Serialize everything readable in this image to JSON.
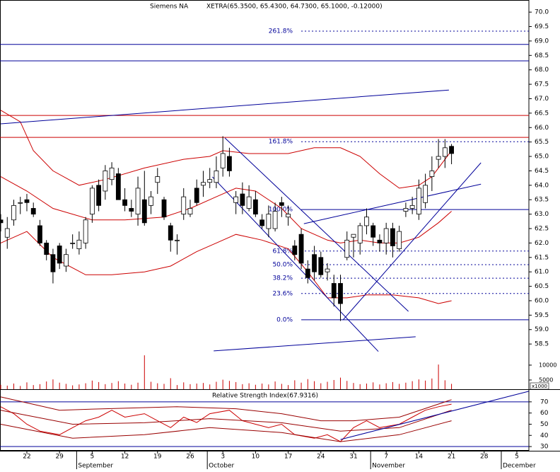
{
  "chart_data": {
    "type": "candlestick",
    "title": "Siemens NA",
    "subtitle": "XETRA(65.3500, 65.4300, 64.7300, 65.1000, -0.12000)",
    "categories": [
      null,
      null,
      null,
      null,
      "22",
      null,
      null,
      null,
      null,
      "29",
      null,
      null,
      null,
      null,
      "5",
      null,
      null,
      null,
      null,
      "12",
      null,
      null,
      null,
      null,
      "19",
      null,
      null,
      null,
      null,
      "26",
      null,
      null,
      null,
      null,
      "3",
      null,
      null,
      null,
      null,
      "10",
      null,
      null,
      null,
      null,
      "17",
      null,
      null,
      null,
      null,
      "24",
      null,
      null,
      null,
      null,
      "31",
      null,
      null,
      null,
      null,
      "7",
      null,
      null,
      null,
      null,
      "14",
      null,
      null,
      null,
      null,
      "21",
      null,
      null,
      null,
      null,
      "28",
      null,
      null,
      null,
      null,
      "5",
      null
    ],
    "months": [
      "September",
      "October",
      "November",
      "December"
    ],
    "open": [
      62.8,
      62.2,
      62.8,
      63.4,
      63.5,
      63.2,
      62.6,
      62.0,
      61.6,
      61.9,
      61.2,
      62.0,
      61.8,
      62.0,
      63.0,
      64.0,
      63.8,
      64.2,
      64.4,
      63.5,
      63.2,
      63.0,
      63.5,
      63.3,
      64.1,
      63.5,
      62.6,
      62.1,
      63.0,
      63.0,
      63.9,
      64.0,
      64.1,
      64.1,
      64.6,
      65.0,
      63.4,
      63.7,
      63.2,
      63.5,
      62.8,
      62.5,
      62.5,
      63.4,
      62.9,
      61.9,
      62.3,
      61.1,
      61.6,
      61.5,
      61.0,
      60.6,
      60.6,
      61.5,
      62.2,
      62.0,
      62.6,
      62.6,
      62.1,
      62.0,
      62.5,
      61.8,
      63.1,
      63.2,
      63.0,
      63.4,
      64.3,
      64.9,
      65.0,
      65.35,
      null,
      null,
      null,
      null,
      null,
      null,
      null,
      null,
      null,
      null,
      null
    ],
    "high": [
      63.0,
      62.9,
      63.5,
      63.6,
      63.7,
      63.4,
      62.8,
      62.1,
      61.8,
      62.0,
      61.8,
      62.3,
      62.4,
      62.9,
      64.0,
      64.2,
      64.7,
      64.8,
      64.6,
      63.9,
      63.5,
      64.3,
      64.5,
      63.8,
      64.6,
      63.6,
      62.7,
      62.3,
      63.9,
      63.5,
      64.2,
      64.5,
      64.6,
      65.0,
      65.7,
      65.3,
      63.8,
      64.1,
      64.0,
      63.8,
      63.0,
      63.3,
      63.4,
      63.6,
      63.3,
      62.1,
      62.5,
      61.4,
      61.9,
      61.7,
      61.3,
      60.9,
      60.9,
      62.4,
      62.3,
      62.7,
      63.2,
      62.7,
      62.3,
      62.7,
      62.7,
      62.6,
      63.4,
      63.6,
      64.2,
      64.4,
      65.0,
      65.6,
      65.6,
      65.43,
      null,
      null,
      null,
      null,
      null,
      null,
      null,
      null,
      null,
      null,
      null
    ],
    "low": [
      62.4,
      61.8,
      62.6,
      63.0,
      63.1,
      62.9,
      61.9,
      61.4,
      60.6,
      61.1,
      61.0,
      61.8,
      61.6,
      61.8,
      62.7,
      63.1,
      63.5,
      64.0,
      63.5,
      63.1,
      62.9,
      62.6,
      62.6,
      63.0,
      63.7,
      62.8,
      61.7,
      61.6,
      62.8,
      62.9,
      63.3,
      63.6,
      63.9,
      63.9,
      64.3,
      64.3,
      63.0,
      63.0,
      63.1,
      62.9,
      62.5,
      62.2,
      62.4,
      62.9,
      62.6,
      61.4,
      61.1,
      60.6,
      60.7,
      60.8,
      60.7,
      59.8,
      59.3,
      61.4,
      61.5,
      61.6,
      62.3,
      61.9,
      61.7,
      61.6,
      61.5,
      61.7,
      62.9,
      63.0,
      62.8,
      63.2,
      63.8,
      64.6,
      64.6,
      64.73,
      null,
      null,
      null,
      null,
      null,
      null,
      null,
      null,
      null,
      null,
      null
    ],
    "close": [
      62.7,
      62.5,
      63.3,
      63.4,
      63.4,
      63.0,
      62.0,
      61.6,
      61.0,
      61.3,
      61.6,
      62.0,
      62.1,
      62.8,
      63.9,
      63.3,
      64.5,
      64.6,
      63.5,
      63.3,
      63.1,
      63.9,
      62.7,
      63.6,
      64.3,
      62.9,
      62.1,
      62.1,
      63.6,
      63.2,
      63.4,
      64.1,
      64.2,
      64.5,
      65.1,
      64.5,
      63.6,
      63.3,
      63.6,
      63.0,
      62.6,
      63.0,
      63.1,
      63.3,
      63.0,
      61.6,
      61.3,
      60.8,
      61.0,
      60.9,
      61.1,
      60.1,
      59.9,
      62.1,
      62.3,
      62.6,
      62.9,
      62.2,
      62.0,
      62.5,
      61.9,
      62.4,
      63.2,
      63.3,
      63.9,
      64.0,
      64.5,
      65.0,
      65.3,
      65.1,
      null,
      null,
      null,
      null,
      null,
      null,
      null,
      null,
      null,
      null,
      null
    ],
    "up_color": "#ffffff",
    "down_color": "#000000",
    "ylim": [
      58.16,
      70.42
    ],
    "yticks": [
      {
        "value": 58.5,
        "label": "58.5"
      },
      {
        "value": 59,
        "label": "59.0"
      },
      {
        "value": 59.5,
        "label": "59.5"
      },
      {
        "value": 60,
        "label": "60.0"
      },
      {
        "value": 60.5,
        "label": "60.5"
      },
      {
        "value": 61,
        "label": "61.0"
      },
      {
        "value": 61.5,
        "label": "61.5"
      },
      {
        "value": 62,
        "label": "62.0"
      },
      {
        "value": 62.5,
        "label": "62.5"
      },
      {
        "value": 63,
        "label": "63.0"
      },
      {
        "value": 63.5,
        "label": "63.5"
      },
      {
        "value": 64,
        "label": "64.0"
      },
      {
        "value": 64.5,
        "label": "64.5"
      },
      {
        "value": 65,
        "label": "65.0"
      },
      {
        "value": 65.5,
        "label": "65.5"
      },
      {
        "value": 66,
        "label": "66.0"
      },
      {
        "value": 66.5,
        "label": "66.5"
      },
      {
        "value": 67,
        "label": "67.0"
      },
      {
        "value": 67.5,
        "label": "67.5"
      },
      {
        "value": 68,
        "label": "68.0"
      },
      {
        "value": 68.5,
        "label": "68.5"
      },
      {
        "value": 69,
        "label": "69.0"
      },
      {
        "value": 69.5,
        "label": "69.5"
      },
      {
        "value": 70,
        "label": "70.0"
      }
    ],
    "hlines": [
      {
        "value": 68.88,
        "color": "#000099"
      },
      {
        "value": 68.31,
        "color": "#000099"
      },
      {
        "value": 66.42,
        "color": "#cc0000"
      },
      {
        "value": 65.66,
        "color": "#cc0000"
      }
    ],
    "lines": [
      {
        "x": [
          0,
          3,
          5,
          8,
          12,
          16,
          22,
          28,
          32,
          34,
          38,
          44,
          48,
          52,
          55,
          58,
          61,
          64,
          66,
          69
        ],
        "values": [
          66.6,
          66.2,
          65.2,
          64.5,
          64.0,
          64.2,
          64.6,
          64.9,
          65.0,
          65.2,
          65.1,
          65.1,
          65.3,
          65.3,
          65.0,
          64.4,
          63.9,
          64.0,
          64.3,
          65.2
        ],
        "color": "#cc0000"
      },
      {
        "x": [
          0,
          4,
          8,
          14,
          19,
          25,
          29,
          33,
          36,
          39,
          43,
          46,
          50,
          52,
          55,
          58,
          61,
          64,
          67,
          69
        ],
        "values": [
          64.3,
          63.8,
          63.2,
          62.8,
          62.8,
          62.9,
          63.2,
          63.6,
          63.9,
          63.8,
          63.2,
          62.5,
          62.1,
          62.0,
          62.1,
          62.0,
          62.0,
          62.2,
          62.7,
          63.1
        ],
        "color": "#cc0000"
      },
      {
        "x": [
          0,
          4,
          8,
          13,
          17,
          22,
          26,
          30,
          33,
          36,
          40,
          44,
          47,
          50,
          53,
          56,
          60,
          64,
          67,
          69
        ],
        "values": [
          62.0,
          62.4,
          61.5,
          60.9,
          60.9,
          61.0,
          61.2,
          61.7,
          62.0,
          62.3,
          62.1,
          61.8,
          61.0,
          60.1,
          60.1,
          60.2,
          60.2,
          60.1,
          59.9,
          60.0
        ],
        "color": "#cc0000"
      },
      {
        "x": [
          0,
          68.6
        ],
        "values": [
          66.13,
          67.3
        ],
        "color": "#000099"
      },
      {
        "x": [
          34.3,
          62.4
        ],
        "values": [
          65.64,
          59.63
        ],
        "color": "#000099"
      },
      {
        "x": [
          32.4,
          57.8
        ],
        "values": [
          64.29,
          58.24
        ],
        "color": "#000099"
      },
      {
        "x": [
          52.4,
          73.5
        ],
        "values": [
          59.34,
          64.78
        ],
        "color": "#000099"
      },
      {
        "x": [
          46.4,
          73.5
        ],
        "values": [
          62.67,
          64.04
        ],
        "color": "#000099"
      },
      {
        "x": [
          32.6,
          63.5
        ],
        "values": [
          58.26,
          58.75
        ],
        "color": "#000099"
      }
    ],
    "fib": {
      "from": 46,
      "color": "#000099",
      "levels": [
        {
          "name": "261.8%",
          "price": 69.34,
          "style": "dotted"
        },
        {
          "name": "161.8%",
          "price": 65.51,
          "style": "dotted"
        },
        {
          "name": "100.0%",
          "price": 63.16,
          "style": "solid"
        },
        {
          "name": "61.8%",
          "price": 61.72,
          "style": "dotted"
        },
        {
          "name": "50.0%",
          "price": 61.25,
          "style": "dotted"
        },
        {
          "name": "38.2%",
          "price": 60.78,
          "style": "dotted"
        },
        {
          "name": "23.6%",
          "price": 60.25,
          "style": "dotted"
        },
        {
          "name": "0.0%",
          "price": 59.34,
          "style": "solid"
        }
      ]
    },
    "volume": {
      "unit": "x1000",
      "color": "#cc0000",
      "ylim": [
        1900,
        13800
      ],
      "yticks": [
        5000,
        10000
      ],
      "values": [
        3400,
        3100,
        3800,
        3000,
        4200,
        3300,
        3600,
        4500,
        5200,
        4100,
        3700,
        3200,
        3500,
        3900,
        4800,
        4300,
        3600,
        4000,
        4600,
        3800,
        3400,
        4100,
        13300,
        4400,
        3900,
        3700,
        5600,
        3300,
        4200,
        3600,
        3800,
        4000,
        3500,
        4400,
        5100,
        4700,
        4300,
        3600,
        3900,
        3400,
        3800,
        3500,
        4500,
        3700,
        3300,
        4900,
        4100,
        5300,
        4600,
        3900,
        4400,
        5000,
        5800,
        4700,
        4000,
        3600,
        3800,
        4200,
        3500,
        3900,
        4300,
        3700,
        4100,
        4600,
        5200,
        4800,
        5500,
        10200,
        4900,
        3700,
        null,
        null,
        null,
        null,
        null,
        null,
        null,
        null,
        null,
        null,
        null
      ]
    },
    "rsi": {
      "title": "Relative Strength Index(67.9316)",
      "ylim": [
        27.5,
        79.4
      ],
      "yticks": [
        30,
        40,
        50,
        60,
        70
      ],
      "hlines": [
        {
          "value": 70,
          "color": "#000099"
        },
        {
          "value": 30,
          "color": "#000099"
        }
      ],
      "lines": [
        {
          "x": [
            0,
            2,
            4,
            6,
            9,
            11,
            13,
            15,
            17,
            19,
            22,
            24,
            26,
            28,
            30,
            32,
            35,
            37,
            39,
            41,
            43,
            45,
            48,
            50,
            52,
            54,
            56,
            58,
            61,
            63,
            65,
            67,
            69
          ],
          "values": [
            65.6,
            59.4,
            50.0,
            43.8,
            40.6,
            46.9,
            53.1,
            56.3,
            62.5,
            56.3,
            59.4,
            53.1,
            46.9,
            56.3,
            51.5,
            59.4,
            62.5,
            53.1,
            50.0,
            46.9,
            50.0,
            40.6,
            37.5,
            40.6,
            34.4,
            46.9,
            53.1,
            46.9,
            50.0,
            56.3,
            62.5,
            65.6,
            67.93
          ],
          "color": "#cc0000"
        },
        {
          "x": [
            0,
            9,
            16,
            27,
            36,
            43,
            49,
            54,
            61,
            69
          ],
          "values": [
            74.4,
            62.5,
            63.8,
            65.6,
            63.8,
            59.4,
            53.1,
            53.1,
            56.3,
            71.9
          ],
          "color": "#990000"
        },
        {
          "x": [
            0,
            11,
            22,
            32,
            43,
            52,
            61,
            69
          ],
          "values": [
            62.5,
            50.0,
            51.3,
            55.0,
            51.3,
            43.8,
            46.9,
            62.5
          ],
          "color": "#990000"
        },
        {
          "x": [
            0,
            11,
            22,
            32,
            43,
            52,
            61,
            69
          ],
          "values": [
            50.0,
            37.5,
            40.6,
            46.9,
            42.5,
            34.4,
            40.6,
            53.1
          ],
          "color": "#990000"
        },
        {
          "x": [
            52,
            80.8
          ],
          "values": [
            36.3,
            79.4
          ],
          "color": "#000099"
        }
      ]
    }
  }
}
